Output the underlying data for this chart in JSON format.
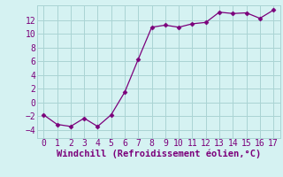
{
  "x": [
    0,
    1,
    2,
    3,
    4,
    5,
    6,
    7,
    8,
    9,
    10,
    11,
    12,
    13,
    14,
    15,
    16,
    17
  ],
  "y": [
    -1.8,
    -3.2,
    -3.5,
    -2.3,
    -3.5,
    -1.8,
    1.5,
    6.3,
    11.0,
    11.3,
    11.0,
    11.5,
    11.7,
    13.2,
    13.0,
    13.1,
    12.3,
    13.5
  ],
  "line_color": "#7b007b",
  "marker": "D",
  "marker_size": 2.5,
  "bg_color": "#d5f2f2",
  "grid_color": "#aad4d4",
  "xlabel": "Windchill (Refroidissement éolien,°C)",
  "xlabel_color": "#7b007b",
  "tick_color": "#7b007b",
  "xlim": [
    -0.5,
    17.5
  ],
  "ylim": [
    -5.2,
    14.2
  ],
  "xticks": [
    0,
    1,
    2,
    3,
    4,
    5,
    6,
    7,
    8,
    9,
    10,
    11,
    12,
    13,
    14,
    15,
    16,
    17
  ],
  "yticks": [
    -4,
    -2,
    0,
    2,
    4,
    6,
    8,
    10,
    12
  ],
  "tick_fontsize": 7,
  "xlabel_fontsize": 7.5
}
